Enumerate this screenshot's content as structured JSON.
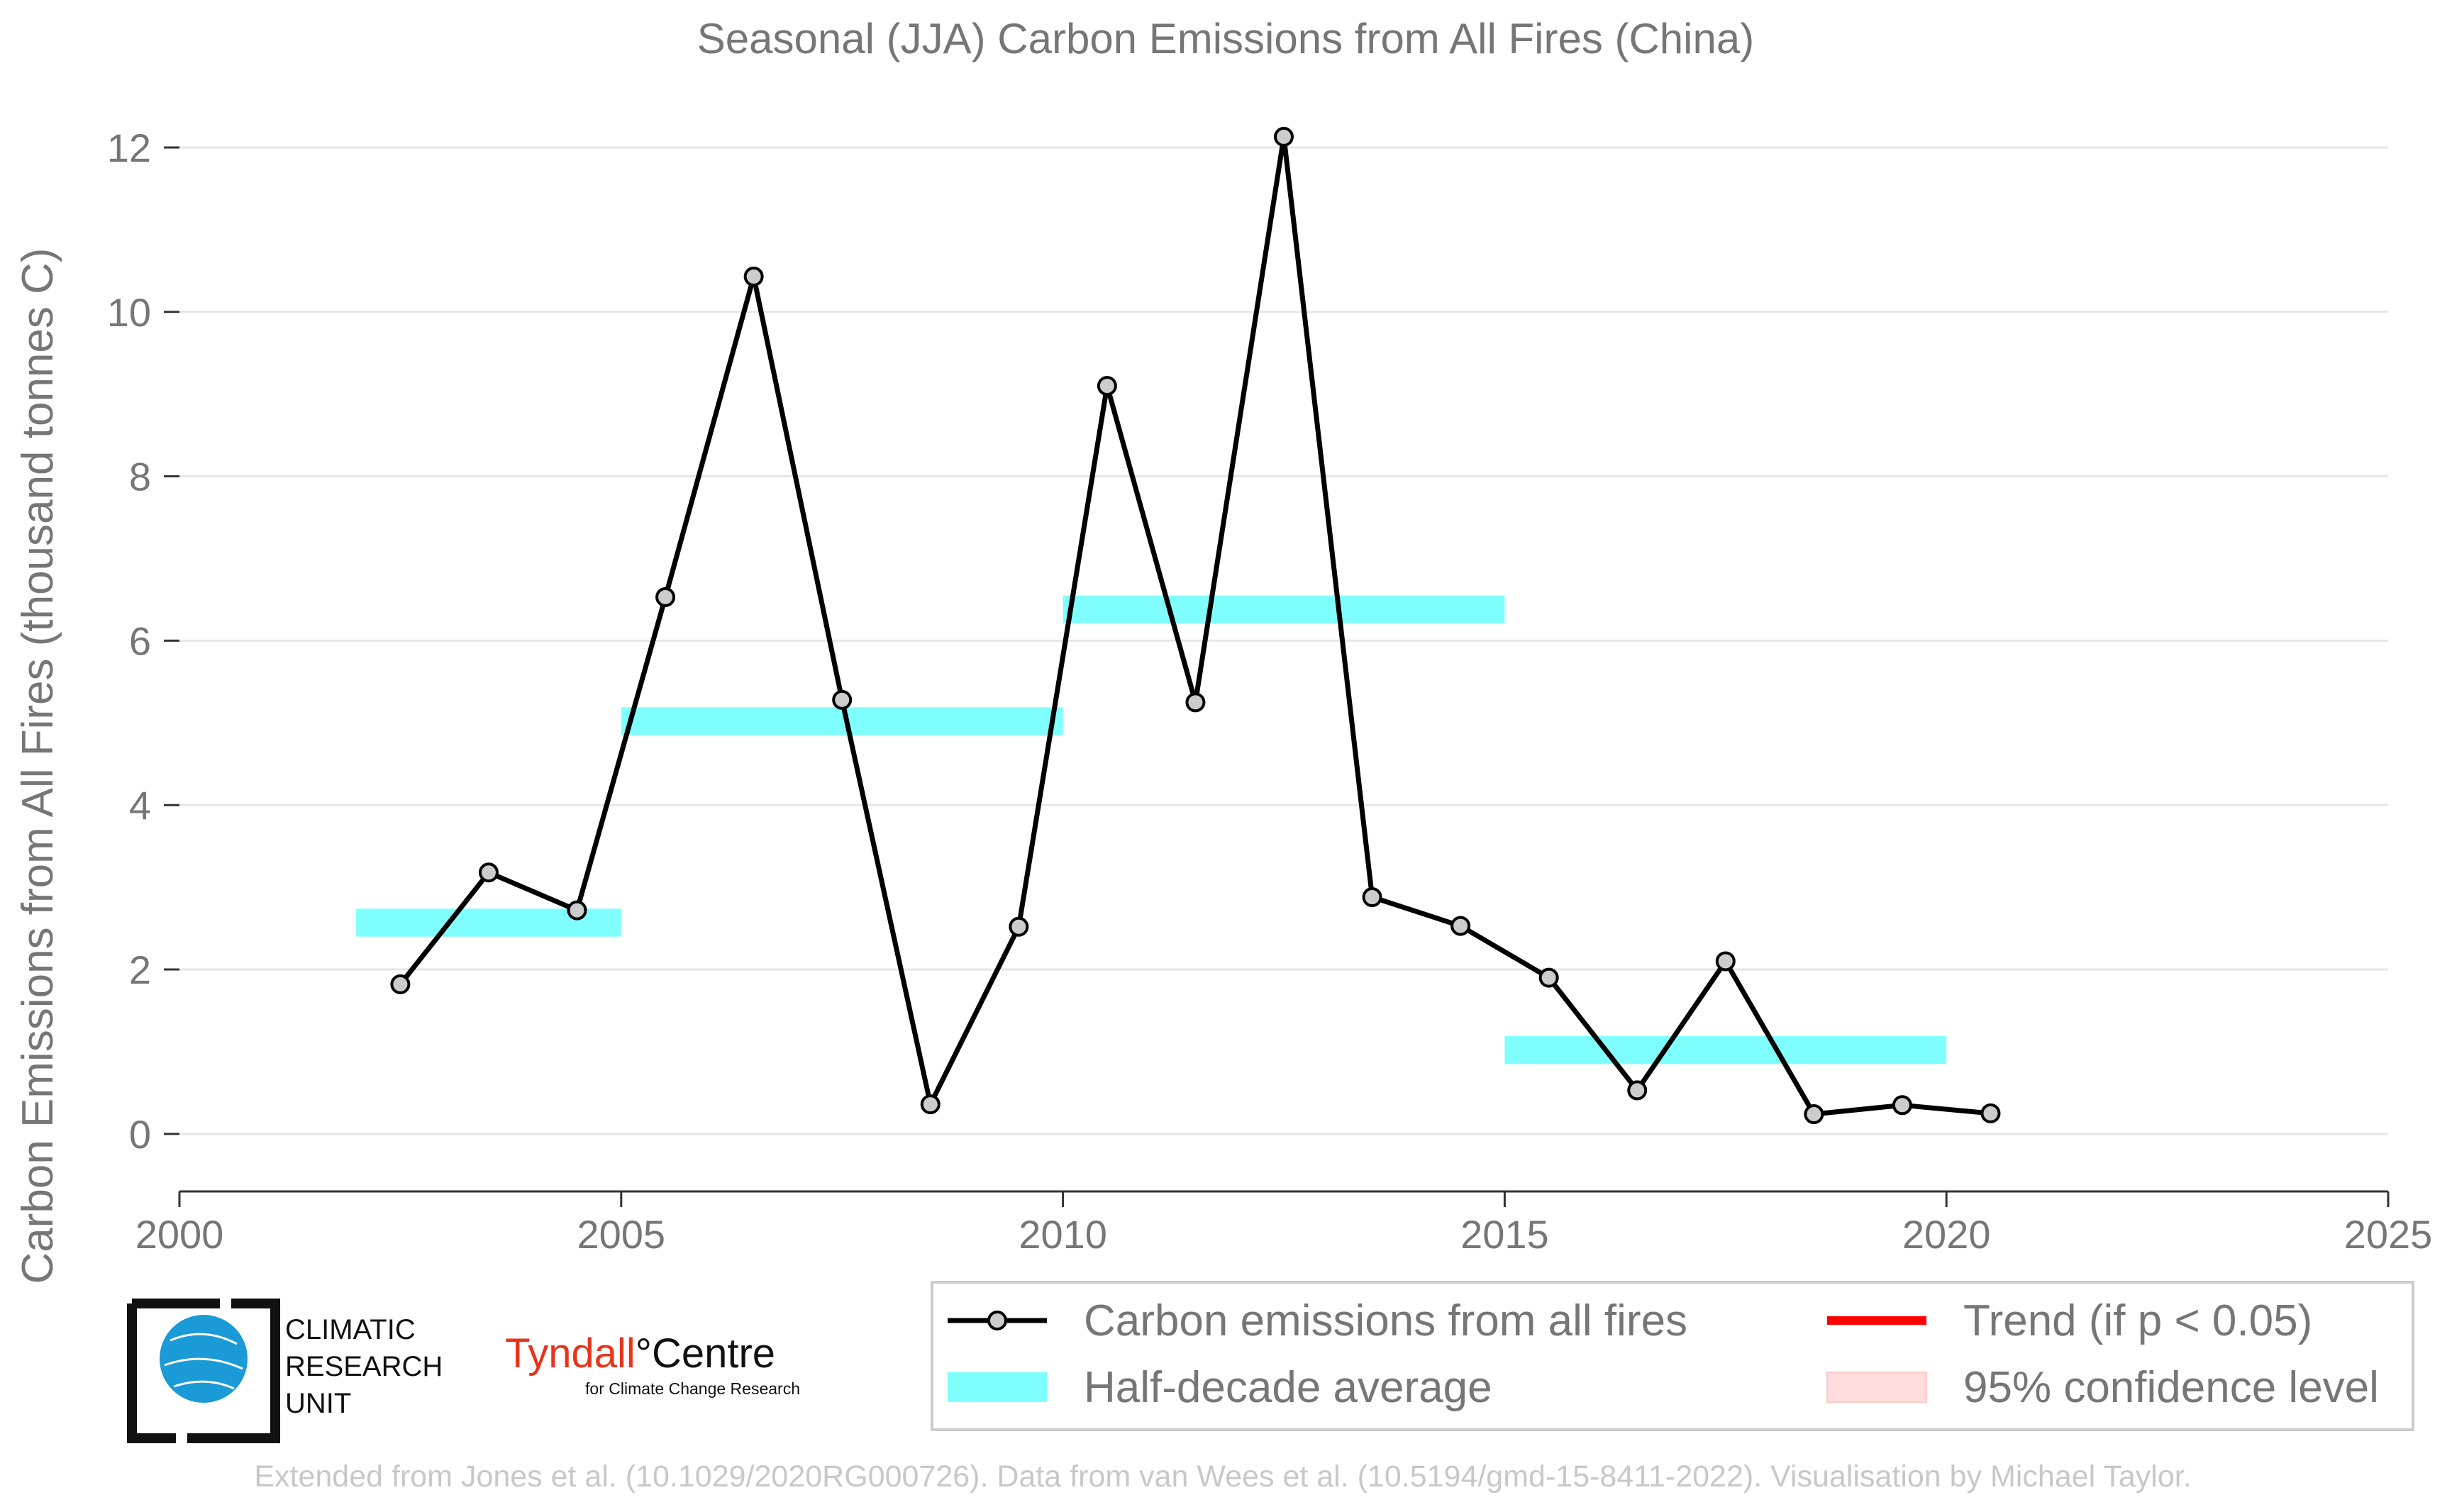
{
  "chart_data": {
    "type": "line",
    "title": "Seasonal (JJA) Carbon Emissions from All Fires (China)",
    "xlabel": "",
    "ylabel": "Carbon Emissions from All Fires (thousand tonnes C)",
    "xlim": [
      2000,
      2025
    ],
    "ylim": [
      -0.7,
      12.5
    ],
    "x_ticks": [
      2000,
      2005,
      2010,
      2015,
      2020,
      2025
    ],
    "y_ticks": [
      0,
      2,
      4,
      6,
      8,
      10,
      12
    ],
    "grid": "horizontal",
    "legend_placement": "bottom-right",
    "series": [
      {
        "name": "Carbon emissions from all fires",
        "color": "#000000",
        "marker_fill": "#cccccc",
        "x": [
          2002.5,
          2003.5,
          2004.5,
          2005.5,
          2006.5,
          2007.5,
          2008.5,
          2009.5,
          2010.5,
          2011.5,
          2012.5,
          2013.5,
          2014.5,
          2015.5,
          2016.5,
          2017.5,
          2018.5,
          2019.5,
          2020.5
        ],
        "values": [
          1.82,
          3.18,
          2.72,
          6.53,
          10.43,
          5.28,
          0.36,
          2.52,
          9.1,
          5.25,
          12.13,
          2.88,
          2.53,
          1.9,
          0.53,
          2.1,
          0.24,
          0.35,
          0.25
        ]
      }
    ],
    "half_decade_average": {
      "name": "Half-decade average",
      "color": "#80ffff",
      "segments": [
        {
          "x_start": 2002,
          "x_end": 2005,
          "value": 2.57
        },
        {
          "x_start": 2005,
          "x_end": 2010,
          "value": 5.02
        },
        {
          "x_start": 2010,
          "x_end": 2015,
          "value": 6.38
        },
        {
          "x_start": 2015,
          "x_end": 2020,
          "value": 1.02
        }
      ]
    },
    "legend": [
      {
        "label": "Carbon emissions from all fires",
        "kind": "line-marker",
        "color": "#000000"
      },
      {
        "label": "Half-decade average",
        "kind": "band",
        "color": "#80ffff"
      },
      {
        "label": "Trend (if p < 0.05)",
        "kind": "line",
        "color": "#ff0000"
      },
      {
        "label": "95% confidence level",
        "kind": "band",
        "color": "#ffdddd"
      }
    ]
  },
  "logos": {
    "cru": {
      "line1": "CLIMATIC",
      "line2": "RESEARCH",
      "line3": "UNIT"
    },
    "tyndall": {
      "name_part1": "Tyndall",
      "name_part2": "°Centre",
      "tagline": "for Climate Change Research"
    }
  },
  "footer": {
    "credit": "Extended from Jones et al. (10.1029/2020RG000726). Data from van Wees et al. (10.5194/gmd-15-8411-2022). Visualisation by Michael Taylor."
  }
}
